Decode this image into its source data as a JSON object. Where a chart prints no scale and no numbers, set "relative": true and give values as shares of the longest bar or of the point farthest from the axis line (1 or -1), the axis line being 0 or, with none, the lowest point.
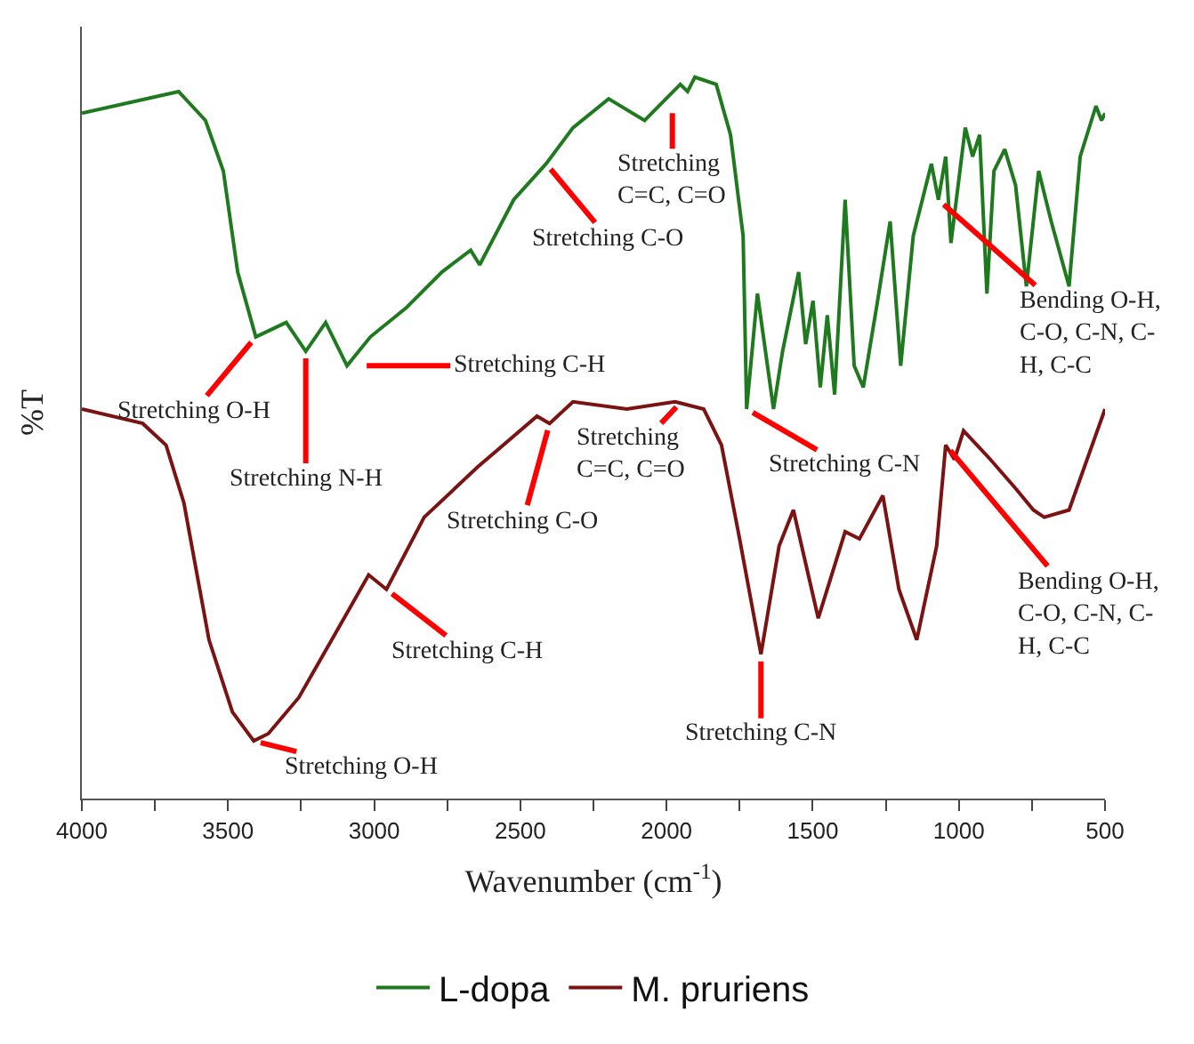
{
  "chart_data": {
    "type": "line",
    "relative": true,
    "xlabel": "Wavenumber (cm$^{-1}$)",
    "ylabel": "%T",
    "xlim": [
      4000,
      500
    ],
    "xticks": [
      4000,
      {
        "value": 3750,
        "label": null
      },
      3500,
      {
        "value": 3250,
        "label": null
      },
      3000,
      {
        "value": 2750,
        "label": null
      },
      2500,
      {
        "value": 2250,
        "label": null
      },
      2000,
      {
        "value": 1750,
        "label": null
      },
      1500,
      {
        "value": 1250,
        "label": null
      },
      1000,
      {
        "value": 750,
        "label": null
      },
      500
    ],
    "legend": "bottom",
    "marker": "none",
    "line_style": "solid",
    "series": [
      {
        "name": "L-dopa",
        "color": "#1f7a1f",
        "x": [
          4000,
          3669,
          3577,
          3516,
          3467,
          3405,
          3301,
          3234,
          3166,
          3093,
          3013,
          2891,
          2768,
          2670,
          2639,
          2523,
          2412,
          2320,
          2198,
          2075,
          1953,
          1928,
          1903,
          1830,
          1781,
          1738,
          1726,
          1689,
          1634,
          1603,
          1548,
          1524,
          1499,
          1474,
          1450,
          1425,
          1389,
          1358,
          1327,
          1278,
          1235,
          1199,
          1156,
          1094,
          1070,
          1045,
          1027,
          978,
          953,
          929,
          904,
          880,
          843,
          806,
          769,
          727,
          684,
          623,
          585,
          531,
          512,
          500
        ],
        "values": [
          0.95,
          0.98,
          0.94,
          0.87,
          0.73,
          0.64,
          0.66,
          0.62,
          0.66,
          0.6,
          0.64,
          0.68,
          0.73,
          0.76,
          0.74,
          0.83,
          0.88,
          0.93,
          0.97,
          0.94,
          0.99,
          0.98,
          1.0,
          0.99,
          0.92,
          0.78,
          0.54,
          0.7,
          0.54,
          0.62,
          0.73,
          0.63,
          0.69,
          0.57,
          0.67,
          0.56,
          0.83,
          0.6,
          0.57,
          0.69,
          0.8,
          0.6,
          0.78,
          0.88,
          0.83,
          0.89,
          0.77,
          0.93,
          0.89,
          0.92,
          0.7,
          0.87,
          0.9,
          0.85,
          0.71,
          0.87,
          0.8,
          0.71,
          0.89,
          0.96,
          0.94,
          0.95
        ]
      },
      {
        "name": "M. pruriens",
        "color": "#7b1313",
        "x": [
          4000,
          3792,
          3712,
          3651,
          3565,
          3485,
          3412,
          3362,
          3258,
          3117,
          3019,
          2958,
          2829,
          2645,
          2443,
          2400,
          2320,
          2136,
          1971,
          1873,
          1812,
          1750,
          1677,
          1615,
          1566,
          1481,
          1389,
          1340,
          1260,
          1205,
          1144,
          1076,
          1045,
          1015,
          984,
          892,
          806,
          745,
          708,
          623,
          500
        ],
        "values": [
          0.54,
          0.52,
          0.49,
          0.41,
          0.22,
          0.12,
          0.08,
          0.09,
          0.14,
          0.24,
          0.31,
          0.29,
          0.39,
          0.46,
          0.53,
          0.52,
          0.55,
          0.54,
          0.55,
          0.54,
          0.49,
          0.36,
          0.2,
          0.35,
          0.4,
          0.25,
          0.37,
          0.36,
          0.42,
          0.29,
          0.22,
          0.35,
          0.49,
          0.47,
          0.51,
          0.47,
          0.43,
          0.4,
          0.39,
          0.4,
          0.54
        ]
      }
    ],
    "annotations": [
      {
        "text": "Stretching O-H",
        "x": 3405,
        "y": 0.64
      },
      {
        "text": "Stretching N-H",
        "x": 3234,
        "y": 0.62
      },
      {
        "text": "Stretching C-H",
        "x": 3050,
        "y": 0.6
      },
      {
        "text": "Stretching C-O",
        "x": 2412,
        "y": 0.88
      },
      {
        "text": "Stretching\nC=C, C=O",
        "x": 1980,
        "y": 0.96
      },
      {
        "text": "Stretching C-N",
        "x": 1726,
        "y": 0.54
      },
      {
        "text": "Bending O-H,\nC-O, C-N, C-\nH, C-C",
        "x": 1070,
        "y": 0.83
      },
      {
        "text": "Stretching O-H",
        "x": 3412,
        "y": 0.08
      },
      {
        "text": "Stretching C-H",
        "x": 2958,
        "y": 0.29
      },
      {
        "text": "Stretching C-O",
        "x": 2400,
        "y": 0.52
      },
      {
        "text": "Stretching\nC=C, C=O",
        "x": 1950,
        "y": 0.55
      },
      {
        "text": "Stretching C-N",
        "x": 1677,
        "y": 0.2
      },
      {
        "text": "Bending O-H,\nC-O, C-N, C-\nH, C-C",
        "x": 1045,
        "y": 0.49
      }
    ]
  }
}
